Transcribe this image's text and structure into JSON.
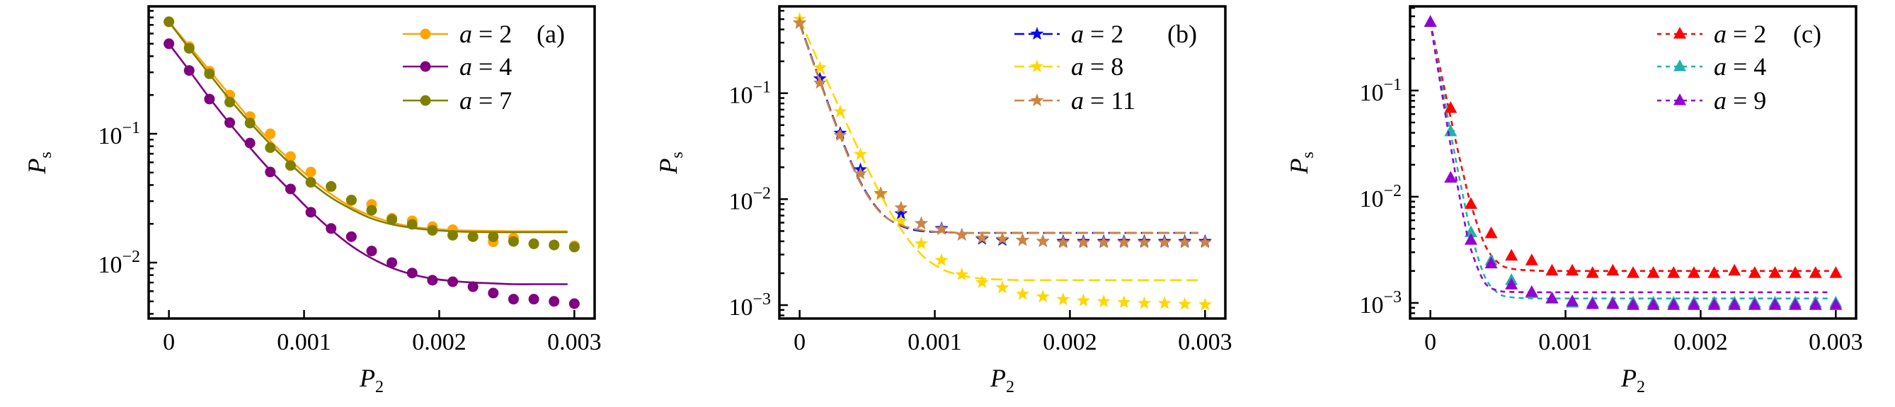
{
  "chart_data": [
    {
      "type": "scatter",
      "panel_tag": "(a)",
      "xlabel": {
        "main": "P",
        "sub": "2"
      },
      "ylabel": {
        "main": "P",
        "sub": "s"
      },
      "yscale": "log",
      "xlim": [
        -0.00015,
        0.00315
      ],
      "ylim": [
        0.00368,
        0.975
      ],
      "xticks": [
        0,
        0.001,
        0.002,
        0.003
      ],
      "xtick_labels": [
        "0",
        "0.001",
        "0.002",
        "0.003"
      ],
      "yticks": [
        0.1,
        0.01
      ],
      "ytick_labels": [
        {
          "base": "10",
          "exp": "−1"
        },
        {
          "base": "10",
          "exp": "−2"
        }
      ],
      "legend_position": "top-right",
      "marker": "circle",
      "line_style": "solid",
      "x": [
        0,
        0.00015,
        0.0003,
        0.00045,
        0.0006,
        0.00075,
        0.0009,
        0.00105,
        0.0012,
        0.00135,
        0.0015,
        0.00165,
        0.0018,
        0.00195,
        0.0021,
        0.00225,
        0.0024,
        0.00255,
        0.0027,
        0.00285,
        0.003
      ],
      "fit_x": [
        0,
        0.00015,
        0.0003,
        0.00045,
        0.0006,
        0.00075,
        0.0009,
        0.00105,
        0.0012,
        0.00135,
        0.0015,
        0.00165,
        0.0018,
        0.00195,
        0.0021,
        0.00225,
        0.0024,
        0.00255,
        0.0027,
        0.00285,
        0.00295
      ],
      "series": [
        {
          "name": "a = 2",
          "color": "#FFA500",
          "values": [
            0.74,
            0.475,
            0.306,
            0.2,
            0.136,
            0.1,
            0.0666,
            0.0505,
            0.039,
            0.0303,
            0.0283,
            0.0221,
            0.0211,
            0.019,
            0.018,
            0.0159,
            0.0145,
            0.0155,
            0.014,
            0.0137,
            0.0135
          ],
          "fit": [
            0.74,
            0.48,
            0.31,
            0.2,
            0.13,
            0.088,
            0.062,
            0.045,
            0.034,
            0.027,
            0.023,
            0.0205,
            0.019,
            0.0183,
            0.0179,
            0.0177,
            0.0176,
            0.0175,
            0.0175,
            0.0175,
            0.0175
          ]
        },
        {
          "name": "a = 4",
          "color": "#800080",
          "values": [
            0.5,
            0.31,
            0.186,
            0.122,
            0.0847,
            0.0505,
            0.0373,
            0.0246,
            0.0184,
            0.0159,
            0.0123,
            0.01,
            0.0083,
            0.0073,
            0.0071,
            0.0065,
            0.0058,
            0.0052,
            0.0052,
            0.005,
            0.0048
          ],
          "fit": [
            0.5,
            0.31,
            0.19,
            0.12,
            0.078,
            0.052,
            0.036,
            0.025,
            0.018,
            0.0135,
            0.0108,
            0.0091,
            0.0081,
            0.0075,
            0.0072,
            0.007,
            0.0069,
            0.0068,
            0.0068,
            0.0068,
            0.0068
          ]
        },
        {
          "name": "a = 7",
          "color": "#808000",
          "values": [
            0.74,
            0.46,
            0.292,
            0.176,
            0.121,
            0.078,
            0.0567,
            0.042,
            0.039,
            0.0306,
            0.0255,
            0.0216,
            0.0198,
            0.0178,
            0.0163,
            0.0159,
            0.0159,
            0.0146,
            0.014,
            0.0137,
            0.0132
          ],
          "fit": [
            0.74,
            0.46,
            0.29,
            0.185,
            0.122,
            0.083,
            0.058,
            0.042,
            0.032,
            0.026,
            0.022,
            0.0198,
            0.0186,
            0.0179,
            0.0175,
            0.0173,
            0.0172,
            0.0172,
            0.0172,
            0.0172,
            0.0172
          ]
        }
      ]
    },
    {
      "type": "scatter",
      "panel_tag": "(b)",
      "xlabel": {
        "main": "P",
        "sub": "2"
      },
      "ylabel": {
        "main": "P",
        "sub": "s"
      },
      "yscale": "log",
      "xlim": [
        -0.00015,
        0.00315
      ],
      "ylim": [
        0.000747,
        0.66
      ],
      "xticks": [
        0,
        0.001,
        0.002,
        0.003
      ],
      "xtick_labels": [
        "0",
        "0.001",
        "0.002",
        "0.003"
      ],
      "yticks": [
        0.1,
        0.01,
        0.001
      ],
      "ytick_labels": [
        {
          "base": "10",
          "exp": "−1"
        },
        {
          "base": "10",
          "exp": "−2"
        },
        {
          "base": "10",
          "exp": "−3"
        }
      ],
      "legend_position": "top-right",
      "marker": "star",
      "line_style": "dashed",
      "x": [
        0,
        0.00015,
        0.0003,
        0.00045,
        0.0006,
        0.00075,
        0.0009,
        0.00105,
        0.0012,
        0.00135,
        0.0015,
        0.00165,
        0.0018,
        0.00195,
        0.0021,
        0.00225,
        0.0024,
        0.00255,
        0.0027,
        0.00285,
        0.003
      ],
      "fit_x": [
        0,
        0.00015,
        0.0003,
        0.00045,
        0.0006,
        0.00075,
        0.0009,
        0.00105,
        0.0012,
        0.00135,
        0.0015,
        0.00165,
        0.0018,
        0.00195,
        0.0021,
        0.00225,
        0.0024,
        0.00255,
        0.0027,
        0.00285,
        0.00295
      ],
      "series": [
        {
          "name": "a = 2",
          "color": "#0000FF",
          "values": [
            0.46,
            0.137,
            0.042,
            0.019,
            0.0113,
            0.0073,
            0.0059,
            0.0053,
            0.0046,
            0.0042,
            0.0041,
            0.0041,
            0.004,
            0.004,
            0.004,
            0.004,
            0.004,
            0.004,
            0.004,
            0.004,
            0.004
          ],
          "fit": [
            0.46,
            0.131,
            0.04,
            0.0145,
            0.0075,
            0.0056,
            0.005,
            0.0049,
            0.0048,
            0.0048,
            0.0048,
            0.0048,
            0.0048,
            0.0048,
            0.0048,
            0.0048,
            0.0048,
            0.0048,
            0.0048,
            0.0048,
            0.0048
          ]
        },
        {
          "name": "a = 8",
          "color": "#FFD700",
          "values": [
            0.5,
            0.174,
            0.067,
            0.0265,
            0.011,
            0.0062,
            0.0038,
            0.00265,
            0.00194,
            0.00164,
            0.00146,
            0.00127,
            0.0012,
            0.00113,
            0.0011,
            0.00108,
            0.00106,
            0.00104,
            0.00104,
            0.00102,
            0.00101
          ],
          "fit": [
            0.5,
            0.184,
            0.07,
            0.027,
            0.011,
            0.0052,
            0.003,
            0.0022,
            0.0019,
            0.00178,
            0.00174,
            0.00172,
            0.00172,
            0.00172,
            0.00172,
            0.00172,
            0.00172,
            0.00172,
            0.00172,
            0.00172,
            0.00172
          ]
        },
        {
          "name": "a = 11",
          "color": "#CD853F",
          "values": [
            0.46,
            0.125,
            0.04,
            0.0174,
            0.0113,
            0.0083,
            0.0059,
            0.0052,
            0.0046,
            0.0043,
            0.0042,
            0.0041,
            0.004,
            0.0039,
            0.0039,
            0.0039,
            0.0039,
            0.0039,
            0.0039,
            0.0039,
            0.0039
          ],
          "fit": [
            0.45,
            0.128,
            0.039,
            0.0142,
            0.0074,
            0.0057,
            0.0051,
            0.0049,
            0.0048,
            0.0048,
            0.0048,
            0.0048,
            0.0048,
            0.0048,
            0.0048,
            0.0048,
            0.0048,
            0.0048,
            0.0048,
            0.0048,
            0.0048
          ]
        }
      ]
    },
    {
      "type": "scatter",
      "panel_tag": "(c)",
      "xlabel": {
        "main": "P",
        "sub": "2"
      },
      "ylabel": {
        "main": "P",
        "sub": "s"
      },
      "yscale": "log",
      "xlim": [
        -0.00015,
        0.00315
      ],
      "ylim": [
        0.000713,
        0.62
      ],
      "xticks": [
        0,
        0.001,
        0.002,
        0.003
      ],
      "xtick_labels": [
        "0",
        "0.001",
        "0.002",
        "0.003"
      ],
      "yticks": [
        0.1,
        0.01,
        0.001
      ],
      "ytick_labels": [
        {
          "base": "10",
          "exp": "−1"
        },
        {
          "base": "10",
          "exp": "−2"
        },
        {
          "base": "10",
          "exp": "−3"
        }
      ],
      "legend_position": "top-right",
      "marker": "triangle",
      "line_style": "dotted-dash",
      "x": [
        0,
        0.00015,
        0.0003,
        0.00045,
        0.0006,
        0.00075,
        0.0009,
        0.00105,
        0.0012,
        0.00135,
        0.0015,
        0.00165,
        0.0018,
        0.00195,
        0.0021,
        0.00225,
        0.0024,
        0.00255,
        0.0027,
        0.00285,
        0.003
      ],
      "fit_x": [
        0,
        5e-05,
        0.0001,
        0.00015,
        0.0002,
        0.00025,
        0.0003,
        0.0004,
        0.0005,
        0.0006,
        0.0008,
        0.001,
        0.002,
        0.00295
      ],
      "series": [
        {
          "name": "a = 2",
          "color": "#FF0000",
          "values": [
            0.44,
            0.068,
            0.0085,
            0.0045,
            0.00277,
            0.0025,
            0.002,
            0.002,
            0.0019,
            0.002,
            0.0019,
            0.0019,
            0.0019,
            0.0019,
            0.0019,
            0.002,
            0.0019,
            0.0019,
            0.0019,
            0.0019,
            0.0019
          ],
          "fit": [
            0.442,
            0.22,
            0.11,
            0.0555,
            0.0285,
            0.0151,
            0.0085,
            0.0036,
            0.0024,
            0.0021,
            0.00201,
            0.002,
            0.002,
            0.002
          ]
        },
        {
          "name": "a = 4",
          "color": "#20B2AA",
          "values": [
            0.44,
            0.041,
            0.0046,
            0.0025,
            0.00163,
            0.00123,
            0.00109,
            0.001,
            0.001,
            0.001,
            0.001,
            0.001,
            0.001,
            0.001,
            0.001,
            0.001,
            0.001,
            0.001,
            0.001,
            0.001,
            0.001
          ],
          "fit": [
            0.441,
            0.197,
            0.089,
            0.04,
            0.0187,
            0.009,
            0.0046,
            0.0018,
            0.00124,
            0.00113,
            0.0011,
            0.0011,
            0.0011,
            0.0011
          ]
        },
        {
          "name": "a = 9",
          "color": "#9400D3",
          "values": [
            0.44,
            0.015,
            0.0039,
            0.00234,
            0.00148,
            0.00126,
            0.0011,
            0.00103,
            0.00097,
            0.00097,
            0.00095,
            0.00095,
            0.00095,
            0.00095,
            0.00095,
            0.00095,
            0.00095,
            0.00095,
            0.00095,
            0.00095,
            0.00095
          ],
          "fit": [
            0.441,
            0.177,
            0.0729,
            0.0301,
            0.0129,
            0.006,
            0.0032,
            0.00157,
            0.00131,
            0.00127,
            0.00126,
            0.00126,
            0.00126,
            0.00126
          ]
        }
      ]
    }
  ]
}
